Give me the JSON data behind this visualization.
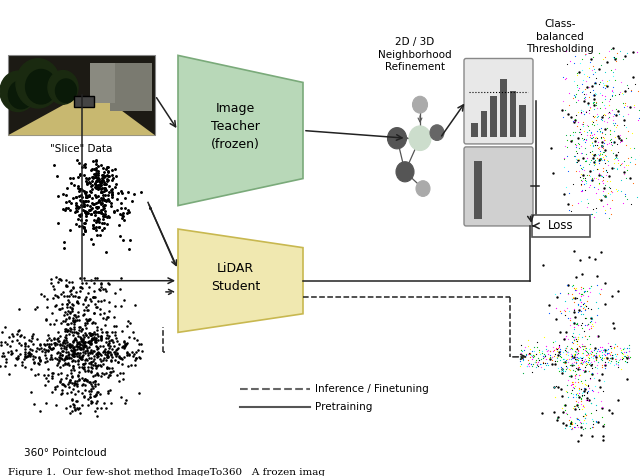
{
  "fig_width": 6.4,
  "fig_height": 4.76,
  "dpi": 100,
  "bg_color": "#ffffff",
  "teacher_color": "#b8d8b8",
  "teacher_edge": "#7aaa7a",
  "student_color": "#f0e8b0",
  "student_edge": "#c8b850",
  "arrow_color": "#222222",
  "node_colors": [
    "#aaaaaa",
    "#ccddcc",
    "#555555",
    "#444444",
    "#888888",
    "#aaaaaa"
  ],
  "hist_bar_color": "#555555",
  "hist_bg1": "#e8e8e8",
  "hist_bg2": "#d0d0d0",
  "loss_bg": "#ffffff",
  "loss_edge": "#555555",
  "teacher_label": "Image\nTeacher\n(frozen)",
  "student_label": "LiDAR\nStudent",
  "loss_label": "Loss",
  "neighborhood_label": "2D / 3D\nNeighborhood\nRefinement",
  "threshold_label": "Class-\nbalanced\nThresholding",
  "slice_label": "\"Slice\" Data",
  "pointcloud_label": "360° Pointcloud",
  "legend_dashed_label": "Inference / Finetuning",
  "legend_solid_label": "Pretraining",
  "caption": "Figure 1.  Our few-shot method ImageTo360   A frozen imag"
}
